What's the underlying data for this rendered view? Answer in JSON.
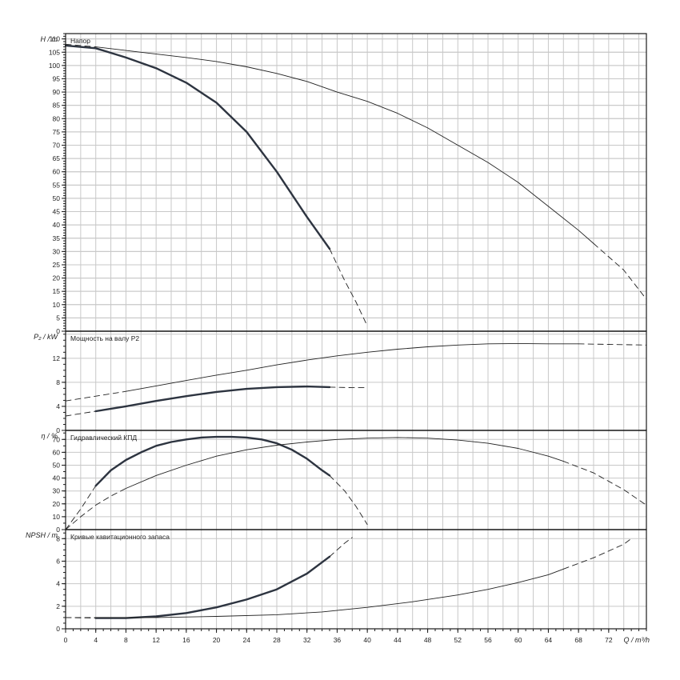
{
  "x_axis": {
    "label": "Q / m³/h",
    "min": 0,
    "max": 77,
    "step": 4,
    "ticks": [
      "0",
      "4",
      "8",
      "12",
      "16",
      "20",
      "24",
      "28",
      "32",
      "36",
      "40",
      "44",
      "48",
      "52",
      "56",
      "60",
      "64",
      "68",
      "72"
    ]
  },
  "chart_data": [
    {
      "type": "line",
      "id": "head",
      "title": "Напор",
      "ylabel": "H / m",
      "ylim": [
        0,
        112
      ],
      "ytick_step": 5,
      "ytick_label_step": 5,
      "minor_tick_step": 1,
      "series": [
        {
          "role": "min-speed",
          "solid": [
            [
              0,
              107.5
            ],
            [
              4,
              106.5
            ],
            [
              8,
              103
            ],
            [
              12,
              99
            ],
            [
              16,
              93.5
            ],
            [
              20,
              86
            ],
            [
              24,
              75
            ],
            [
              28,
              60
            ],
            [
              32,
              43
            ],
            [
              35,
              31
            ]
          ],
          "dashed": [
            [
              35,
              31
            ],
            [
              37,
              19
            ],
            [
              38.5,
              11
            ],
            [
              40,
              2
            ]
          ]
        },
        {
          "role": "max-speed",
          "dashed_start": [
            [
              0,
              108
            ],
            [
              4,
              107
            ]
          ],
          "solid": [
            [
              4,
              107
            ],
            [
              10,
              105
            ],
            [
              16,
              103
            ],
            [
              20,
              101.5
            ],
            [
              24,
              99.5
            ],
            [
              28,
              97
            ],
            [
              32,
              94
            ],
            [
              36,
              90
            ],
            [
              40,
              86.5
            ],
            [
              44,
              82
            ],
            [
              48,
              76.5
            ],
            [
              52,
              70
            ],
            [
              56,
              63.5
            ],
            [
              60,
              56
            ],
            [
              64,
              47
            ],
            [
              68,
              38
            ],
            [
              70,
              33
            ]
          ],
          "dashed": [
            [
              70,
              33
            ],
            [
              74,
              23
            ],
            [
              77,
              12
            ]
          ]
        }
      ]
    },
    {
      "type": "line",
      "id": "power",
      "title": "Мощность на валу P2",
      "ylabel": "P₂ / kW",
      "ylim": [
        0,
        16.5
      ],
      "ytick_step": 4,
      "ytick_label_step": 4,
      "minor_tick_step": 1,
      "series": [
        {
          "role": "min-speed",
          "dashed_start": [
            [
              0,
              2.4
            ],
            [
              4,
              3.2
            ]
          ],
          "solid": [
            [
              4,
              3.2
            ],
            [
              8,
              4
            ],
            [
              12,
              4.9
            ],
            [
              16,
              5.7
            ],
            [
              20,
              6.4
            ],
            [
              24,
              6.9
            ],
            [
              28,
              7.2
            ],
            [
              32,
              7.3
            ],
            [
              35,
              7.2
            ]
          ],
          "dashed": [
            [
              35,
              7.2
            ],
            [
              38,
              7.1
            ],
            [
              40,
              7.1
            ]
          ]
        },
        {
          "role": "max-speed",
          "dashed_start": [
            [
              0,
              4.9
            ],
            [
              8,
              6.5
            ]
          ],
          "solid": [
            [
              8,
              6.5
            ],
            [
              12,
              7.4
            ],
            [
              16,
              8.3
            ],
            [
              20,
              9.2
            ],
            [
              24,
              10
            ],
            [
              28,
              10.9
            ],
            [
              32,
              11.7
            ],
            [
              36,
              12.4
            ],
            [
              40,
              13
            ],
            [
              44,
              13.5
            ],
            [
              48,
              13.9
            ],
            [
              52,
              14.2
            ],
            [
              56,
              14.4
            ],
            [
              60,
              14.45
            ],
            [
              64,
              14.4
            ],
            [
              68,
              14.4
            ]
          ],
          "dashed": [
            [
              68,
              14.4
            ],
            [
              72,
              14.3
            ],
            [
              77,
              14.2
            ]
          ]
        }
      ]
    },
    {
      "type": "line",
      "id": "efficiency",
      "title": "Гидравлический КПД",
      "ylabel": "η / %",
      "ylim": [
        0,
        77
      ],
      "ytick_step": 10,
      "ytick_label_step": 10,
      "minor_tick_step": 5,
      "series": [
        {
          "role": "min-speed",
          "dashed_start": [
            [
              0,
              0
            ],
            [
              2,
              16
            ],
            [
              4,
              34
            ]
          ],
          "solid": [
            [
              4,
              34
            ],
            [
              6,
              46
            ],
            [
              8,
              54
            ],
            [
              10,
              60
            ],
            [
              12,
              65
            ],
            [
              14,
              68
            ],
            [
              16,
              70
            ],
            [
              18,
              71.5
            ],
            [
              20,
              72
            ],
            [
              22,
              72
            ],
            [
              24,
              71.5
            ],
            [
              26,
              70
            ],
            [
              28,
              67
            ],
            [
              30,
              62
            ],
            [
              32,
              55
            ],
            [
              34,
              46
            ],
            [
              35,
              42
            ]
          ],
          "dashed": [
            [
              35,
              42
            ],
            [
              37,
              30
            ],
            [
              38.5,
              18
            ],
            [
              40,
              4
            ]
          ]
        },
        {
          "role": "max-speed",
          "dashed_start": [
            [
              0,
              0
            ],
            [
              2,
              10
            ],
            [
              4,
              19
            ],
            [
              6,
              26
            ],
            [
              8,
              32
            ]
          ],
          "solid": [
            [
              8,
              32
            ],
            [
              12,
              42
            ],
            [
              16,
              50
            ],
            [
              20,
              57
            ],
            [
              24,
              62
            ],
            [
              28,
              65.5
            ],
            [
              32,
              68
            ],
            [
              36,
              70
            ],
            [
              40,
              71
            ],
            [
              44,
              71.5
            ],
            [
              48,
              71
            ],
            [
              52,
              69.5
            ],
            [
              56,
              67
            ],
            [
              60,
              63
            ],
            [
              64,
              57
            ],
            [
              66,
              53
            ]
          ],
          "dashed": [
            [
              66,
              53
            ],
            [
              70,
              44
            ],
            [
              74,
              31
            ],
            [
              77,
              19
            ]
          ]
        }
      ]
    },
    {
      "type": "line",
      "id": "npsh",
      "title": "Кривые кавитационного запаса",
      "ylabel": "NPSH / m",
      "ylim": [
        0,
        8.8
      ],
      "ytick_step": 2,
      "ytick_label_step": 2,
      "minor_tick_step": 0.5,
      "series": [
        {
          "role": "min-speed",
          "dashed_start": [
            [
              0,
              1
            ],
            [
              4,
              0.95
            ]
          ],
          "solid": [
            [
              4,
              0.95
            ],
            [
              8,
              0.95
            ],
            [
              12,
              1.1
            ],
            [
              16,
              1.4
            ],
            [
              20,
              1.9
            ],
            [
              24,
              2.6
            ],
            [
              28,
              3.5
            ],
            [
              32,
              4.9
            ],
            [
              35,
              6.4
            ]
          ],
          "dashed": [
            [
              35,
              6.4
            ],
            [
              37,
              7.6
            ],
            [
              38,
              8.1
            ]
          ]
        },
        {
          "role": "max-speed",
          "dashed_start": [
            [
              0,
              1
            ],
            [
              4,
              1
            ]
          ],
          "solid": [
            [
              4,
              1
            ],
            [
              12,
              1
            ],
            [
              20,
              1.1
            ],
            [
              28,
              1.25
            ],
            [
              34,
              1.5
            ],
            [
              40,
              1.9
            ],
            [
              46,
              2.4
            ],
            [
              52,
              3
            ],
            [
              56,
              3.5
            ],
            [
              60,
              4.1
            ],
            [
              64,
              4.8
            ],
            [
              66,
              5.3
            ]
          ],
          "dashed": [
            [
              66,
              5.3
            ],
            [
              70,
              6.3
            ],
            [
              74,
              7.5
            ],
            [
              75,
              8
            ]
          ]
        }
      ]
    }
  ]
}
